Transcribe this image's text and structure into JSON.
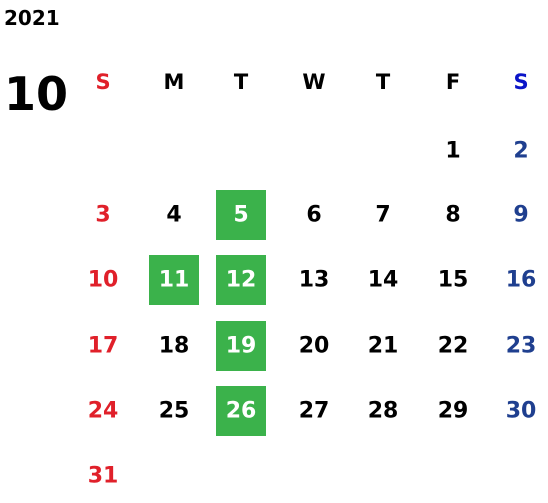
{
  "calendar": {
    "year": "2021",
    "month": "10",
    "weekdays": [
      "S",
      "M",
      "T",
      "W",
      "T",
      "F",
      "S"
    ],
    "weeks": [
      [
        null,
        null,
        null,
        null,
        null,
        1,
        2
      ],
      [
        3,
        4,
        5,
        6,
        7,
        8,
        9
      ],
      [
        10,
        11,
        12,
        13,
        14,
        15,
        16
      ],
      [
        17,
        18,
        19,
        20,
        21,
        22,
        23
      ],
      [
        24,
        25,
        26,
        27,
        28,
        29,
        30
      ],
      [
        31,
        null,
        null,
        null,
        null,
        null,
        null
      ]
    ],
    "highlighted": [
      5,
      11,
      12,
      19,
      26
    ],
    "highlight_color": "#3bb24b"
  }
}
